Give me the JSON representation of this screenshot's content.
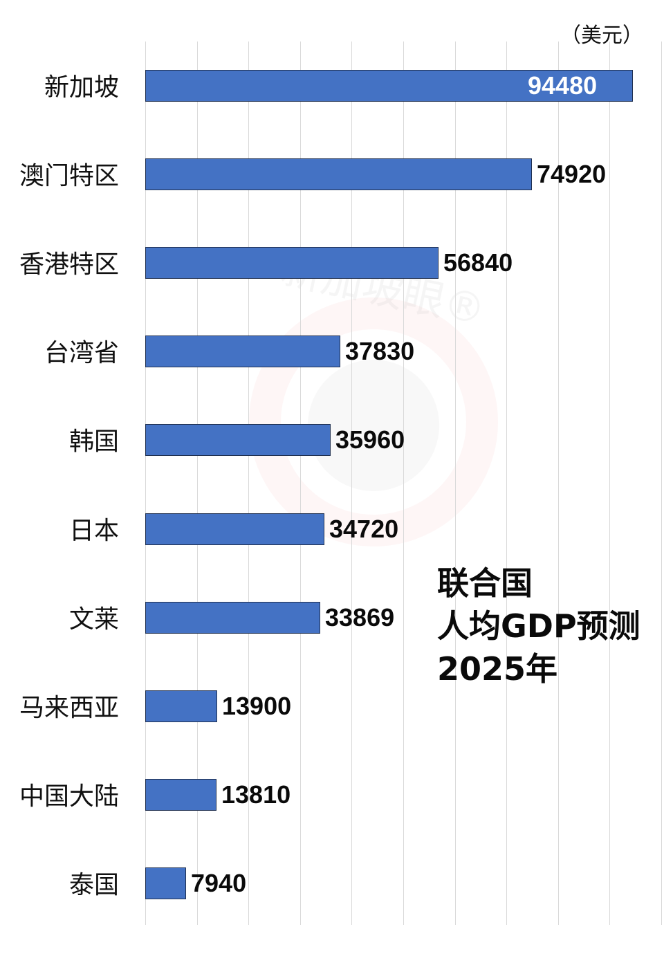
{
  "chart_data": {
    "type": "bar",
    "orientation": "horizontal",
    "title": "联合国 人均GDP预测 2025年",
    "title_lines": [
      "联合国",
      "人均GDP预测",
      "2025年"
    ],
    "unit_label": "（美元）",
    "xlabel": "",
    "ylabel": "",
    "xlim": [
      0,
      100000
    ],
    "grid": true,
    "grid_step": 10000,
    "legend": null,
    "bar_color": "#4472c4",
    "categories": [
      "新加坡",
      "澳门特区",
      "香港特区",
      "台湾省",
      "韩国",
      "日本",
      "文莱",
      "马来西亚",
      "中国大陆",
      "泰国"
    ],
    "values": [
      94480,
      74920,
      56840,
      37830,
      35960,
      34720,
      33869,
      13900,
      13810,
      7940
    ],
    "value_labels": [
      "94480",
      "74920",
      "56840",
      "37830",
      "35960",
      "34720",
      "33869",
      "13900",
      "13810",
      "7940"
    ],
    "watermark": "新加坡眼®"
  }
}
